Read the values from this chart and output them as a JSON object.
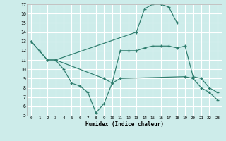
{
  "xlabel": "Humidex (Indice chaleur)",
  "bg_color": "#cdecea",
  "line_color": "#2e7d6e",
  "grid_color": "#ffffff",
  "xlim": [
    -0.5,
    23.5
  ],
  "ylim": [
    5,
    17
  ],
  "xticks": [
    0,
    1,
    2,
    3,
    4,
    5,
    6,
    7,
    8,
    9,
    10,
    11,
    12,
    13,
    14,
    15,
    16,
    17,
    18,
    19,
    20,
    21,
    22,
    23
  ],
  "yticks": [
    5,
    6,
    7,
    8,
    9,
    10,
    11,
    12,
    13,
    14,
    15,
    16,
    17
  ],
  "series": [
    {
      "x": [
        0,
        1,
        2,
        3,
        13,
        14,
        15,
        16,
        17,
        18
      ],
      "y": [
        13,
        12,
        11,
        11,
        14,
        16.5,
        17,
        17,
        16.7,
        15
      ]
    },
    {
      "x": [
        0,
        1,
        2,
        3,
        9,
        10,
        11,
        12,
        13,
        14,
        15,
        16,
        17,
        18,
        19,
        20,
        21,
        22,
        23
      ],
      "y": [
        13,
        12,
        11,
        11,
        9.0,
        8.5,
        12,
        12,
        12,
        12.3,
        12.5,
        12.5,
        12.5,
        12.3,
        12.5,
        9.2,
        9.0,
        8.0,
        7.5
      ]
    },
    {
      "x": [
        3,
        4,
        5,
        6,
        7,
        8,
        9,
        10,
        11,
        19,
        20,
        21,
        22,
        23
      ],
      "y": [
        11,
        10,
        8.5,
        8.2,
        7.5,
        5.3,
        6.3,
        8.5,
        9.0,
        9.2,
        9.0,
        8.0,
        7.5,
        6.7
      ]
    }
  ]
}
